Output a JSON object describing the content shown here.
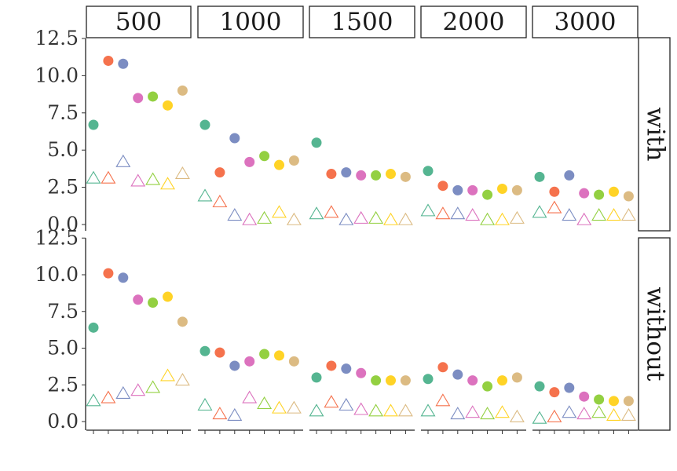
{
  "chart_data": {
    "type": "scatter",
    "col_facets": [
      "500",
      "1000",
      "1500",
      "2000",
      "3000"
    ],
    "row_facets": [
      "with",
      "without"
    ],
    "y_ticks": [
      "0.0",
      "2.5",
      "5.0",
      "7.5",
      "10.0",
      "12.5"
    ],
    "y_tick_values": [
      0,
      2.5,
      5,
      7.5,
      10,
      12.5
    ],
    "ylim": [
      0,
      12.5
    ],
    "x_categories": 7,
    "colors": [
      "#55B591",
      "#F5724D",
      "#7C8DC2",
      "#DC72BE",
      "#93D041",
      "#FFD326",
      "#DCBB83"
    ],
    "shapes": {
      "filled": "circle",
      "open": "triangle"
    },
    "panels": {
      "with": {
        "500": {
          "circle": [
            6.7,
            11.0,
            10.8,
            8.5,
            8.6,
            8.0,
            9.0
          ],
          "triangle": [
            3.1,
            3.1,
            4.2,
            2.9,
            3.0,
            2.7,
            3.4
          ]
        },
        "1000": {
          "circle": [
            6.7,
            3.5,
            5.8,
            4.2,
            4.6,
            4.0,
            4.3
          ],
          "triangle": [
            1.9,
            1.5,
            0.6,
            0.3,
            0.4,
            0.8,
            0.3
          ]
        },
        "1500": {
          "circle": [
            5.5,
            3.4,
            3.5,
            3.3,
            3.3,
            3.4,
            3.2
          ],
          "triangle": [
            0.7,
            0.8,
            0.3,
            0.4,
            0.4,
            0.3,
            0.3
          ]
        },
        "2000": {
          "circle": [
            3.6,
            2.6,
            2.3,
            2.3,
            2.0,
            2.4,
            2.3
          ],
          "triangle": [
            0.9,
            0.7,
            0.7,
            0.6,
            0.3,
            0.3,
            0.4
          ]
        },
        "3000": {
          "circle": [
            3.2,
            2.2,
            3.3,
            2.1,
            2.0,
            2.2,
            1.9
          ],
          "triangle": [
            0.8,
            1.1,
            0.6,
            0.3,
            0.6,
            0.6,
            0.6
          ]
        }
      },
      "without": {
        "500": {
          "circle": [
            6.4,
            10.1,
            9.8,
            8.3,
            8.1,
            8.5,
            6.8
          ],
          "triangle": [
            1.4,
            1.6,
            1.9,
            2.1,
            2.3,
            3.1,
            2.8
          ]
        },
        "1000": {
          "circle": [
            4.8,
            4.7,
            3.8,
            4.1,
            4.6,
            4.5,
            4.1
          ],
          "triangle": [
            1.1,
            0.5,
            0.4,
            1.6,
            1.2,
            0.9,
            0.9
          ]
        },
        "1500": {
          "circle": [
            3.0,
            3.8,
            3.6,
            3.3,
            2.8,
            2.8,
            2.8
          ],
          "triangle": [
            0.7,
            1.3,
            1.1,
            0.8,
            0.7,
            0.7,
            0.7
          ]
        },
        "2000": {
          "circle": [
            2.9,
            3.7,
            3.2,
            2.8,
            2.4,
            2.8,
            3.0
          ],
          "triangle": [
            0.7,
            1.4,
            0.5,
            0.6,
            0.5,
            0.6,
            0.3
          ]
        },
        "3000": {
          "circle": [
            2.4,
            2.0,
            2.3,
            1.7,
            1.5,
            1.4,
            1.4
          ],
          "triangle": [
            0.2,
            0.3,
            0.6,
            0.5,
            0.6,
            0.4,
            0.4
          ]
        }
      }
    }
  }
}
